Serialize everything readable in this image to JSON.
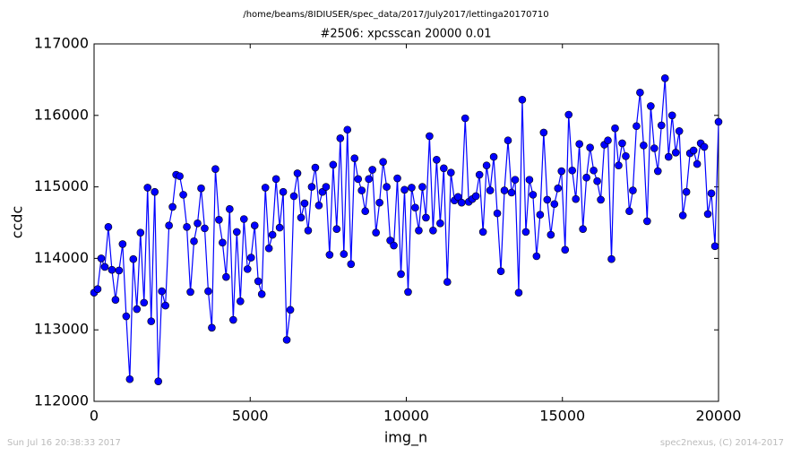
{
  "chart_data": {
    "type": "line",
    "suptitle": "/home/beams/8IDIUSER/spec_data/2017/July2017/lettinga20170710",
    "title": "#2506: xpcsscan 20000 0.01",
    "x_label": "img_n",
    "y_label": "ccdc",
    "footer_left": "Sun Jul 16 20:38:33 2017",
    "footer_right": "spec2nexus, (C) 2014-2017",
    "xlim": [
      0,
      20000
    ],
    "xticks": [
      0,
      5000,
      10000,
      15000,
      20000
    ],
    "ylim": [
      112000,
      117000
    ],
    "yticks": [
      112000,
      113000,
      114000,
      115000,
      116000,
      117000
    ],
    "color": "#0000ff",
    "marker": "circle",
    "x": [
      0,
      114,
      229,
      343,
      457,
      571,
      686,
      800,
      914,
      1029,
      1143,
      1257,
      1371,
      1486,
      1600,
      1714,
      1829,
      1943,
      2057,
      2171,
      2286,
      2400,
      2514,
      2629,
      2743,
      2857,
      2971,
      3086,
      3200,
      3314,
      3429,
      3543,
      3657,
      3771,
      3886,
      4000,
      4114,
      4229,
      4343,
      4457,
      4571,
      4686,
      4800,
      4914,
      5029,
      5143,
      5257,
      5371,
      5486,
      5600,
      5714,
      5829,
      5943,
      6057,
      6171,
      6286,
      6400,
      6514,
      6629,
      6743,
      6857,
      6971,
      7086,
      7200,
      7314,
      7429,
      7543,
      7657,
      7771,
      7886,
      8000,
      8114,
      8229,
      8343,
      8457,
      8571,
      8686,
      8800,
      8914,
      9029,
      9143,
      9257,
      9371,
      9486,
      9600,
      9714,
      9829,
      9943,
      10057,
      10171,
      10286,
      10400,
      10514,
      10629,
      10743,
      10857,
      10971,
      11086,
      11200,
      11314,
      11429,
      11543,
      11657,
      11771,
      11886,
      12000,
      12114,
      12229,
      12343,
      12457,
      12571,
      12686,
      12800,
      12914,
      13029,
      13143,
      13257,
      13371,
      13486,
      13600,
      13714,
      13829,
      13943,
      14057,
      14171,
      14286,
      14400,
      14514,
      14629,
      14743,
      14857,
      14971,
      15086,
      15200,
      15314,
      15429,
      15543,
      15657,
      15771,
      15886,
      16000,
      16114,
      16229,
      16343,
      16457,
      16571,
      16686,
      16800,
      16914,
      17029,
      17143,
      17257,
      17371,
      17486,
      17600,
      17714,
      17829,
      17943,
      18057,
      18171,
      18286,
      18400,
      18514,
      18629,
      18743,
      18857,
      18971,
      19086,
      19200,
      19314,
      19429,
      19543,
      19657,
      19771,
      19886,
      20000
    ],
    "values": [
      113520,
      113570,
      114000,
      113880,
      114440,
      113840,
      113420,
      113830,
      114200,
      113190,
      112310,
      113990,
      113290,
      114360,
      113380,
      114990,
      113120,
      114930,
      112280,
      113540,
      113340,
      114460,
      114720,
      115170,
      115150,
      114890,
      114440,
      113530,
      114240,
      114490,
      114980,
      114420,
      113540,
      113030,
      115250,
      114540,
      114220,
      113740,
      114690,
      113140,
      114370,
      113400,
      114550,
      113850,
      114010,
      114460,
      113680,
      113500,
      114990,
      114140,
      114330,
      115110,
      114430,
      114930,
      112860,
      113280,
      114870,
      115190,
      114570,
      114770,
      114390,
      115000,
      115270,
      114740,
      114930,
      115000,
      114050,
      115310,
      114410,
      115680,
      114060,
      115800,
      113920,
      115400,
      115110,
      114950,
      114660,
      115110,
      115240,
      114360,
      114780,
      115350,
      115000,
      114250,
      114180,
      115120,
      113780,
      114960,
      113530,
      114990,
      114710,
      114390,
      115000,
      114570,
      115710,
      114390,
      115380,
      114490,
      115260,
      113670,
      115200,
      114810,
      114860,
      114780,
      115960,
      114790,
      114830,
      114870,
      115170,
      114370,
      115300,
      114950,
      115420,
      114630,
      113820,
      114950,
      115650,
      114920,
      115100,
      113520,
      116220,
      114370,
      115100,
      114890,
      114030,
      114610,
      115760,
      114820,
      114330,
      114760,
      114980,
      115220,
      114120,
      116010,
      115230,
      114830,
      115600,
      114410,
      115130,
      115550,
      115230,
      115080,
      114820,
      115590,
      115650,
      113990,
      115820,
      115300,
      115610,
      115430,
      114660,
      114950,
      115850,
      116320,
      115580,
      114520,
      116130,
      115540,
      115220,
      115860,
      116520,
      115420,
      116000,
      115480,
      115780,
      114600,
      114930,
      115470,
      115510,
      115320,
      115610,
      115560,
      114620,
      114910,
      114170,
      115910
    ]
  }
}
